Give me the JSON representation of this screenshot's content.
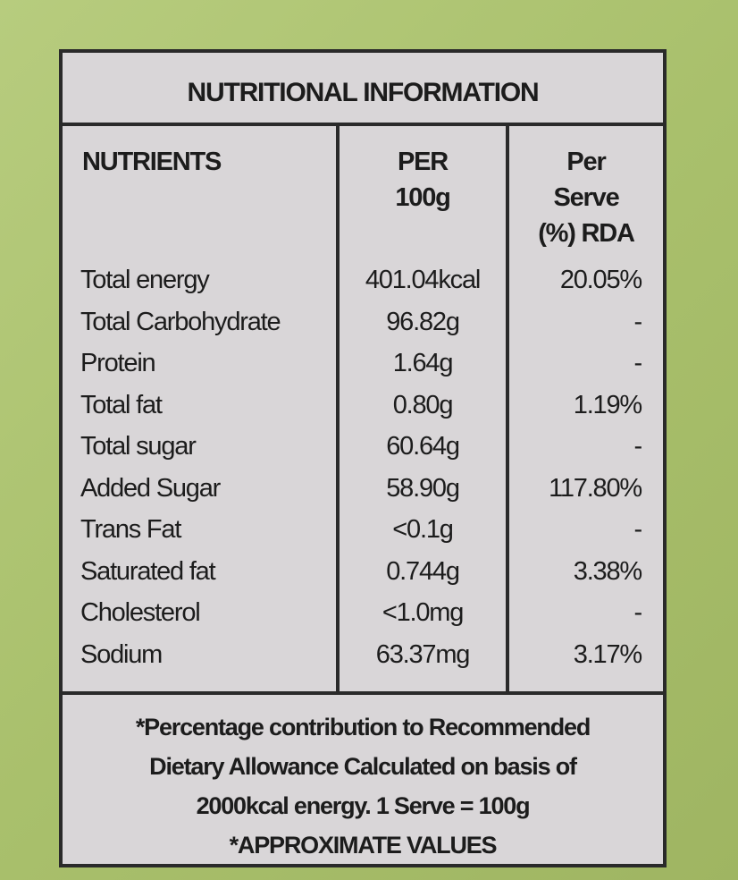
{
  "label": {
    "title": "NUTRITIONAL INFORMATION",
    "headers": [
      [
        "NUTRIENTS"
      ],
      [
        "PER",
        "100g"
      ],
      [
        "Per",
        "Serve",
        "(%) RDA"
      ]
    ],
    "rows": [
      [
        "Total energy",
        "401.04kcal",
        "20.05%"
      ],
      [
        "Total Carbohydrate",
        "96.82g",
        "-"
      ],
      [
        "Protein",
        "1.64g",
        "-"
      ],
      [
        "Total fat",
        "0.80g",
        "1.19%"
      ],
      [
        "Total sugar",
        "60.64g",
        "-"
      ],
      [
        "Added Sugar",
        "58.90g",
        "117.80%"
      ],
      [
        "Trans Fat",
        "<0.1g",
        "-"
      ],
      [
        "Saturated fat",
        "0.744g",
        "3.38%"
      ],
      [
        "Cholesterol",
        "<1.0mg",
        "-"
      ],
      [
        "Sodium",
        "63.37mg",
        "3.17%"
      ]
    ],
    "footnote": [
      "*Percentage contribution to Recommended",
      "Dietary Allowance Calculated on basis of",
      "2000kcal energy. 1 Serve = 100g",
      "*APPROXIMATE VALUES"
    ]
  }
}
